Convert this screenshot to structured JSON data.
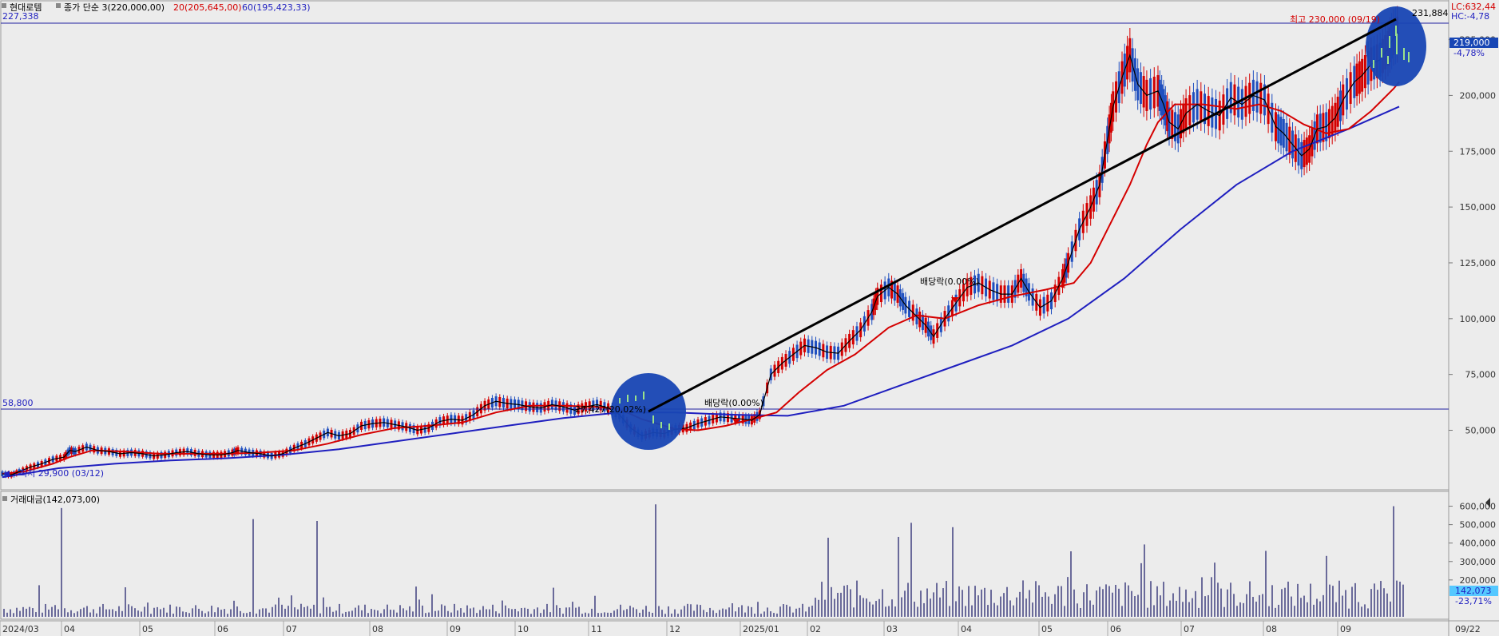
{
  "header": {
    "stock_name": "현대로템",
    "price_label": "종가 단순 3(220,000,00)",
    "ma20_label": "20(205,645,00)",
    "ma60_label": "60(195,423,33)",
    "lc_label": "LC:632,44",
    "hc_label": "HC:-4,78",
    "volume_title": "거래대금(142,073,00)"
  },
  "colors": {
    "background": "#ececec",
    "price_line": "#000000",
    "ma20": "#d40000",
    "ma60": "#1f1fbf",
    "up_candle": "#d40000",
    "down_candle": "#1f4fbf",
    "volume_bar": "#6a6a9a",
    "circle_fill": "#1846b4",
    "current_price_box": "#1846b4",
    "volume_box": "#55c8ff"
  },
  "chart_data": [
    {
      "type": "line",
      "title": "",
      "x": [
        "2024/03",
        "04",
        "05",
        "06",
        "07",
        "08",
        "09",
        "10",
        "11",
        "12",
        "2025/01",
        "02",
        "03",
        "04",
        "05",
        "06",
        "07",
        "08",
        "09"
      ],
      "y_ticks": [
        "50,000",
        "75,000",
        "100,000",
        "125,000",
        "150,000",
        "175,000",
        "200,000",
        "225,000"
      ],
      "ylim": [
        28000,
        232000
      ],
      "series": [
        {
          "name": "종가 단순 3",
          "points": [
            [
              0,
              30500
            ],
            [
              8,
              30000
            ],
            [
              15,
              31500
            ],
            [
              25,
              33500
            ],
            [
              35,
              35000
            ],
            [
              45,
              37000
            ],
            [
              55,
              38000
            ],
            [
              60,
              41000
            ],
            [
              65,
              40500
            ],
            [
              75,
              42500
            ],
            [
              85,
              41000
            ],
            [
              95,
              40500
            ],
            [
              105,
              39500
            ],
            [
              115,
              40000
            ],
            [
              125,
              39500
            ],
            [
              135,
              38500
            ],
            [
              145,
              39000
            ],
            [
              155,
              40000
            ],
            [
              165,
              40500
            ],
            [
              175,
              39500
            ],
            [
              185,
              39000
            ],
            [
              195,
              39000
            ],
            [
              205,
              40000
            ],
            [
              210,
              41000
            ],
            [
              220,
              40000
            ],
            [
              230,
              39500
            ],
            [
              240,
              38500
            ],
            [
              250,
              39500
            ],
            [
              260,
              42000
            ],
            [
              270,
              44000
            ],
            [
              280,
              46500
            ],
            [
              290,
              49000
            ],
            [
              300,
              47500
            ],
            [
              310,
              48500
            ],
            [
              320,
              52000
            ],
            [
              330,
              53000
            ],
            [
              340,
              53500
            ],
            [
              350,
              52500
            ],
            [
              360,
              51500
            ],
            [
              370,
              50000
            ],
            [
              380,
              51000
            ],
            [
              390,
              54000
            ],
            [
              400,
              55000
            ],
            [
              410,
              54500
            ],
            [
              420,
              57000
            ],
            [
              430,
              61000
            ],
            [
              440,
              63000
            ],
            [
              450,
              62000
            ],
            [
              460,
              61500
            ],
            [
              470,
              60500
            ],
            [
              480,
              60000
            ],
            [
              490,
              61500
            ],
            [
              500,
              60500
            ],
            [
              510,
              59000
            ],
            [
              520,
              60500
            ],
            [
              530,
              61500
            ],
            [
              540,
              60000
            ],
            [
              550,
              57000
            ],
            [
              560,
              51000
            ],
            [
              570,
              47500
            ],
            [
              580,
              49000
            ],
            [
              590,
              48500
            ],
            [
              600,
              50500
            ],
            [
              610,
              51000
            ],
            [
              620,
              53000
            ],
            [
              630,
              54500
            ],
            [
              640,
              56000
            ],
            [
              650,
              55500
            ],
            [
              660,
              55000
            ],
            [
              668,
              54500
            ],
            [
              675,
              57000
            ],
            [
              685,
              75000
            ],
            [
              695,
              80000
            ],
            [
              705,
              84000
            ],
            [
              715,
              88000
            ],
            [
              725,
              87000
            ],
            [
              735,
              85000
            ],
            [
              745,
              84500
            ],
            [
              755,
              90000
            ],
            [
              765,
              95000
            ],
            [
              775,
              103000
            ],
            [
              780,
              110000
            ],
            [
              790,
              114000
            ],
            [
              798,
              111000
            ],
            [
              805,
              106000
            ],
            [
              815,
              101000
            ],
            [
              823,
              97000
            ],
            [
              830,
              92000
            ],
            [
              840,
              100000
            ],
            [
              850,
              107000
            ],
            [
              860,
              114000
            ],
            [
              870,
              116000
            ],
            [
              880,
              113000
            ],
            [
              890,
              111000
            ],
            [
              900,
              111000
            ],
            [
              908,
              118000
            ],
            [
              915,
              112000
            ],
            [
              925,
              105000
            ],
            [
              935,
              108000
            ],
            [
              945,
              118000
            ],
            [
              950,
              125000
            ],
            [
              960,
              140000
            ],
            [
              970,
              150000
            ],
            [
              978,
              160000
            ],
            [
              985,
              180000
            ],
            [
              990,
              195000
            ],
            [
              998,
              208000
            ],
            [
              1005,
              218000
            ],
            [
              1012,
              205000
            ],
            [
              1020,
              200000
            ],
            [
              1030,
              202000
            ],
            [
              1035,
              196000
            ],
            [
              1040,
              188000
            ],
            [
              1048,
              185000
            ],
            [
              1055,
              192000
            ],
            [
              1065,
              196000
            ],
            [
              1075,
              193000
            ],
            [
              1085,
              191000
            ],
            [
              1095,
              199000
            ],
            [
              1105,
              196000
            ],
            [
              1115,
              200000
            ],
            [
              1125,
              198000
            ],
            [
              1135,
              186000
            ],
            [
              1142,
              183000
            ],
            [
              1150,
              178000
            ],
            [
              1158,
              173000
            ],
            [
              1165,
              176000
            ],
            [
              1172,
              185000
            ],
            [
              1180,
              186000
            ],
            [
              1188,
              190000
            ],
            [
              1195,
              198000
            ],
            [
              1205,
              206000
            ],
            [
              1212,
              209000
            ],
            [
              1220,
              214000
            ],
            [
              1228,
              216000
            ],
            [
              1235,
              221000
            ],
            [
              1240,
              226000
            ],
            [
              1245,
              228000
            ]
          ]
        },
        {
          "name": "20",
          "points": [
            [
              0,
              30500
            ],
            [
              20,
              31500
            ],
            [
              45,
              35000
            ],
            [
              60,
              38000
            ],
            [
              80,
              41000
            ],
            [
              110,
              40500
            ],
            [
              140,
              39500
            ],
            [
              170,
              39500
            ],
            [
              200,
              39500
            ],
            [
              230,
              40000
            ],
            [
              260,
              41000
            ],
            [
              290,
              44000
            ],
            [
              320,
              48000
            ],
            [
              350,
              51000
            ],
            [
              380,
              52000
            ],
            [
              410,
              53500
            ],
            [
              440,
              58000
            ],
            [
              470,
              61000
            ],
            [
              500,
              61000
            ],
            [
              530,
              60500
            ],
            [
              550,
              59500
            ],
            [
              570,
              55000
            ],
            [
              600,
              50500
            ],
            [
              620,
              50000
            ],
            [
              645,
              52000
            ],
            [
              668,
              55000
            ],
            [
              690,
              58000
            ],
            [
              710,
              67000
            ],
            [
              735,
              77000
            ],
            [
              760,
              84000
            ],
            [
              790,
              96000
            ],
            [
              815,
              101500
            ],
            [
              840,
              100000
            ],
            [
              870,
              106000
            ],
            [
              900,
              110000
            ],
            [
              930,
              113000
            ],
            [
              955,
              116000
            ],
            [
              970,
              125000
            ],
            [
              990,
              145000
            ],
            [
              1005,
              160000
            ],
            [
              1020,
              178000
            ],
            [
              1030,
              188000
            ],
            [
              1045,
              196000
            ],
            [
              1070,
              196000
            ],
            [
              1100,
              194000
            ],
            [
              1120,
              196000
            ],
            [
              1140,
              193000
            ],
            [
              1160,
              187000
            ],
            [
              1180,
              183000
            ],
            [
              1200,
              185000
            ],
            [
              1220,
              193000
            ],
            [
              1240,
              203000
            ],
            [
              1245,
              206000
            ]
          ]
        },
        {
          "name": "60",
          "points": [
            [
              0,
              29000
            ],
            [
              50,
              33000
            ],
            [
              100,
              35000
            ],
            [
              150,
              36500
            ],
            [
              200,
              37500
            ],
            [
              250,
              39000
            ],
            [
              300,
              41500
            ],
            [
              350,
              45000
            ],
            [
              400,
              48500
            ],
            [
              450,
              52000
            ],
            [
              500,
              55500
            ],
            [
              550,
              58000
            ],
            [
              600,
              58000
            ],
            [
              650,
              57000
            ],
            [
              700,
              56500
            ],
            [
              750,
              61000
            ],
            [
              800,
              70000
            ],
            [
              850,
              79000
            ],
            [
              900,
              88000
            ],
            [
              950,
              100000
            ],
            [
              1000,
              118000
            ],
            [
              1050,
              140000
            ],
            [
              1100,
              160000
            ],
            [
              1150,
              175000
            ],
            [
              1200,
              185000
            ],
            [
              1245,
              195000
            ]
          ]
        }
      ],
      "annotations": {
        "high_label": "최고 230,000 (09/19)",
        "low_label": "최저 29,900 (03/12)",
        "dividend_1": "배당락(0.00%)",
        "dividend_2": "배당락(0.00%)",
        "mid_label": "27,427(20,02%)",
        "hline_top": "227,338",
        "hline_mid": "58,800",
        "right_value": "231,884",
        "current_price": "219,000",
        "change_pct": "-4,78%"
      }
    },
    {
      "type": "bar",
      "title": "거래대금(142,073,00)",
      "y_ticks": [
        "200,000",
        "300,000",
        "400,000",
        "500,000",
        "600,000"
      ],
      "ylim": [
        0,
        650000
      ],
      "current_value": "142,073",
      "current_pct": "-23,71%",
      "date_label_right": "09/22",
      "peaks": [
        [
          75,
          590000
        ],
        [
          110,
          580000
        ],
        [
          315,
          530000
        ],
        [
          395,
          520000
        ],
        [
          510,
          500000
        ],
        [
          820,
          610000
        ],
        [
          1030,
          590000
        ],
        [
          1140,
          510000
        ],
        [
          1490,
          500000
        ],
        [
          1745,
          600000
        ]
      ]
    }
  ]
}
